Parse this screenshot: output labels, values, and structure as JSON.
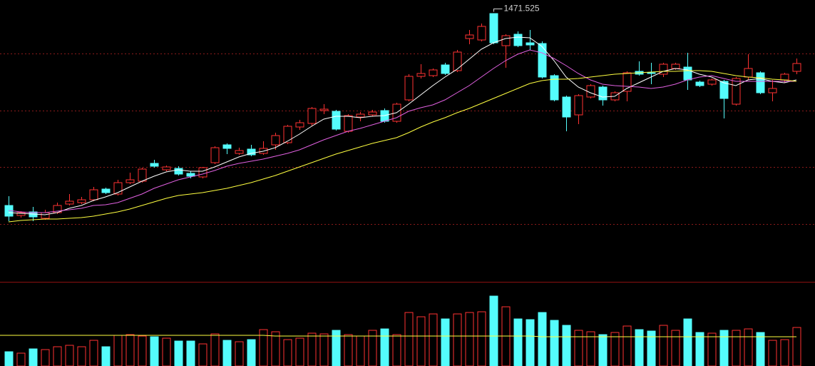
{
  "chart_data": {
    "type": "candlestick",
    "annotation": "1471.525",
    "ylim": [
      1095,
      1490
    ],
    "ygrid": [
      1415,
      1335,
      1256,
      1176
    ],
    "up_color": "#ff3232",
    "down_color": "#54fcfc",
    "open": [
      1202,
      1188,
      1193,
      1184,
      1192,
      1204,
      1206,
      1210,
      1225,
      1218,
      1234,
      1236,
      1261,
      1252,
      1254,
      1247,
      1242,
      1262,
      1287,
      1275,
      1281,
      1275,
      1287,
      1290,
      1312,
      1317,
      1335,
      1334,
      1306,
      1326,
      1329,
      1335,
      1320,
      1350,
      1383,
      1384,
      1399,
      1391,
      1436,
      1434,
      1471,
      1426,
      1442,
      1430,
      1429,
      1384,
      1354,
      1329,
      1354,
      1368,
      1350,
      1362,
      1390,
      1388,
      1386,
      1394,
      1396,
      1375,
      1372,
      1376,
      1344,
      1382,
      1388,
      1360,
      1378,
      1390
    ],
    "high": [
      1215,
      1194,
      1200,
      1196,
      1206,
      1218,
      1214,
      1228,
      1227,
      1238,
      1248,
      1255,
      1266,
      1258,
      1257,
      1250,
      1256,
      1285,
      1289,
      1283,
      1287,
      1292,
      1304,
      1315,
      1322,
      1340,
      1344,
      1336,
      1330,
      1333,
      1336,
      1338,
      1346,
      1386,
      1400,
      1394,
      1402,
      1420,
      1448,
      1457,
      1471.525,
      1442,
      1446,
      1448,
      1432,
      1386,
      1356,
      1358,
      1372,
      1370,
      1362,
      1390,
      1404,
      1402,
      1402,
      1402,
      1416,
      1377,
      1380,
      1378,
      1382,
      1414,
      1390,
      1378,
      1388,
      1408
    ],
    "low": [
      1180,
      1185,
      1180,
      1182,
      1190,
      1202,
      1204,
      1208,
      1218,
      1216,
      1232,
      1234,
      1255,
      1250,
      1244,
      1240,
      1240,
      1260,
      1274,
      1273,
      1271,
      1273,
      1280,
      1288,
      1308,
      1313,
      1330,
      1307,
      1304,
      1320,
      1327,
      1318,
      1318,
      1348,
      1380,
      1382,
      1385,
      1389,
      1428,
      1432,
      1428,
      1395,
      1424,
      1420,
      1380,
      1348,
      1306,
      1316,
      1352,
      1342,
      1348,
      1348,
      1384,
      1372,
      1382,
      1392,
      1364,
      1368,
      1370,
      1324,
      1342,
      1378,
      1358,
      1348,
      1374,
      1386
    ],
    "close": [
      1187,
      1192,
      1186,
      1192,
      1202,
      1208,
      1210,
      1224,
      1220,
      1234,
      1238,
      1253,
      1257,
      1256,
      1246,
      1243,
      1255,
      1283,
      1282,
      1279,
      1273,
      1282,
      1300,
      1313,
      1318,
      1338,
      1337,
      1309,
      1328,
      1330,
      1333,
      1320,
      1344,
      1383,
      1387,
      1392,
      1387,
      1417,
      1441,
      1453,
      1430,
      1440,
      1426,
      1427,
      1382,
      1350,
      1326,
      1356,
      1370,
      1350,
      1360,
      1388,
      1386,
      1387,
      1400,
      1400,
      1378,
      1370,
      1378,
      1352,
      1380,
      1394,
      1360,
      1366,
      1386,
      1401
    ],
    "moving_averages": [
      {
        "color": "#ffffff",
        "values": [
          1192,
          1191,
          1190,
          1189,
          1192,
          1198,
          1202,
          1209,
          1214,
          1220,
          1228,
          1236,
          1243,
          1249,
          1252,
          1250,
          1250,
          1256,
          1263,
          1270,
          1275,
          1278,
          1283,
          1292,
          1302,
          1313,
          1323,
          1327,
          1327,
          1325,
          1327,
          1328,
          1332,
          1344,
          1357,
          1370,
          1382,
          1393,
          1407,
          1421,
          1430,
          1436,
          1438,
          1437,
          1425,
          1405,
          1382,
          1368,
          1360,
          1354,
          1355,
          1366,
          1374,
          1382,
          1390,
          1394,
          1392,
          1386,
          1382,
          1374,
          1370,
          1378,
          1380,
          1376,
          1374,
          1378
        ]
      },
      {
        "color": "#e060e0",
        "values": [
          1195,
          1193,
          1192,
          1192,
          1194,
          1196,
          1198,
          1202,
          1203,
          1206,
          1212,
          1218,
          1226,
          1232,
          1238,
          1242,
          1246,
          1251,
          1257,
          1261,
          1264,
          1267,
          1271,
          1275,
          1280,
          1287,
          1294,
          1300,
          1306,
          1310,
          1315,
          1320,
          1325,
          1334,
          1339,
          1343,
          1350,
          1360,
          1370,
          1382,
          1394,
          1405,
          1414,
          1420,
          1416,
          1408,
          1398,
          1387,
          1378,
          1372,
          1370,
          1369,
          1368,
          1366,
          1368,
          1372,
          1378,
          1382,
          1384,
          1380,
          1376,
          1376,
          1376,
          1376,
          1376,
          1376
        ]
      },
      {
        "color": "#ffff40",
        "values": [
          1179,
          1181,
          1182,
          1183,
          1183,
          1184,
          1185,
          1187,
          1190,
          1193,
          1197,
          1202,
          1207,
          1212,
          1216,
          1218,
          1220,
          1223,
          1226,
          1230,
          1234,
          1239,
          1244,
          1250,
          1256,
          1262,
          1268,
          1274,
          1279,
          1284,
          1289,
          1293,
          1297,
          1304,
          1312,
          1319,
          1325,
          1332,
          1338,
          1345,
          1352,
          1359,
          1366,
          1373,
          1377,
          1379,
          1379,
          1380,
          1382,
          1384,
          1386,
          1387,
          1388,
          1389,
          1390,
          1390,
          1391,
          1391,
          1390,
          1387,
          1384,
          1382,
          1381,
          1379,
          1378,
          1376
        ]
      }
    ],
    "volume": {
      "vlim": [
        0,
        116
      ],
      "values": [
        20,
        18,
        24,
        23,
        27,
        29,
        27,
        36,
        27,
        43,
        44,
        42,
        41,
        39,
        35,
        35,
        31,
        45,
        36,
        34,
        37,
        51,
        48,
        37,
        39,
        46,
        45,
        50,
        44,
        42,
        50,
        52,
        44,
        75,
        69,
        73,
        66,
        73,
        75,
        76,
        98,
        83,
        66,
        65,
        75,
        64,
        57,
        50,
        48,
        44,
        47,
        56,
        51,
        49,
        57,
        50,
        66,
        47,
        46,
        50,
        50,
        52,
        47,
        36,
        37,
        54
      ],
      "ma_color": "#ffff40",
      "ma": [
        43,
        43,
        43,
        43,
        43,
        43,
        43,
        43,
        43,
        43,
        43,
        43,
        43,
        43,
        43,
        43,
        43,
        43,
        43,
        43,
        43,
        43,
        42,
        42,
        42,
        42,
        42,
        42,
        42,
        42,
        42,
        42,
        42,
        42,
        42,
        42,
        42,
        42,
        42,
        42,
        42,
        42,
        42,
        42,
        41,
        41,
        41,
        41,
        41,
        41,
        41,
        41,
        41,
        41,
        41,
        41,
        41,
        41,
        41,
        41,
        41,
        41,
        41,
        41,
        41,
        41
      ]
    }
  }
}
